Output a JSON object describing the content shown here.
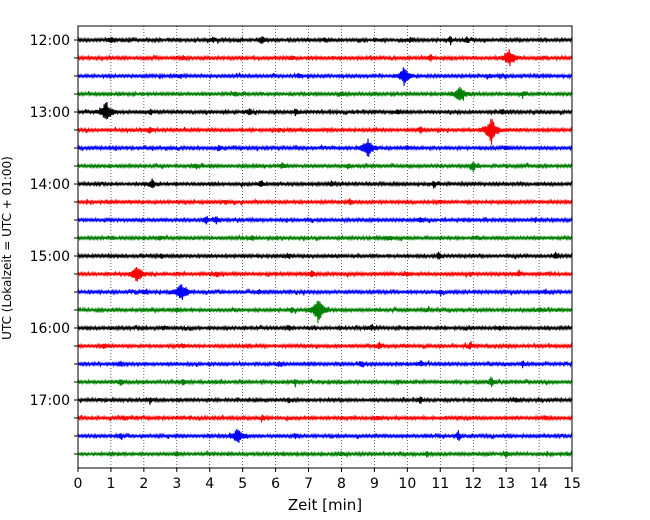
{
  "chart_data": {
    "type": "line",
    "title": "",
    "xlabel": "Zeit  [min]",
    "ylabel": "UTC (Lokalzeit = UTC + 01:00)",
    "xlim": [
      0,
      15
    ],
    "x_ticks": [
      0,
      1,
      2,
      3,
      4,
      5,
      6,
      7,
      8,
      9,
      10,
      11,
      12,
      13,
      14,
      15
    ],
    "x_grid": "dotted vertical lines at each minute",
    "y_tick_labels": [
      "12:00",
      "13:00",
      "14:00",
      "15:00",
      "16:00",
      "17:00"
    ],
    "trace_interval_minutes": 15,
    "trace_color_cycle": [
      "#000000",
      "#ff0000",
      "#0000ff",
      "#008000"
    ],
    "traces": [
      {
        "start": "12:00",
        "color": "#000000",
        "events": [
          [
            5.6,
            0.5
          ],
          [
            1.0,
            0.35
          ],
          [
            4.1,
            0.3
          ],
          [
            7.5,
            0.3
          ],
          [
            10.1,
            0.3
          ],
          [
            11.3,
            0.35
          ],
          [
            11.8,
            0.35
          ]
        ]
      },
      {
        "start": "12:15",
        "color": "#ff0000",
        "events": [
          [
            13.1,
            0.9
          ],
          [
            10.7,
            0.4
          ],
          [
            6.5,
            0.25
          ],
          [
            3.2,
            0.25
          ]
        ]
      },
      {
        "start": "12:30",
        "color": "#0000ff",
        "events": [
          [
            9.9,
            1.0
          ],
          [
            3.1,
            0.25
          ],
          [
            6.7,
            0.25
          ],
          [
            12.5,
            0.25
          ]
        ]
      },
      {
        "start": "12:45",
        "color": "#008000",
        "events": [
          [
            11.6,
            0.9
          ],
          [
            4.8,
            0.25
          ],
          [
            8.0,
            0.25
          ],
          [
            13.5,
            0.25
          ]
        ]
      },
      {
        "start": "13:00",
        "color": "#000000",
        "events": [
          [
            0.85,
            1.2
          ],
          [
            5.2,
            0.35
          ],
          [
            6.6,
            0.35
          ],
          [
            2.2,
            0.3
          ],
          [
            9.7,
            0.3
          ],
          [
            12.9,
            0.3
          ]
        ]
      },
      {
        "start": "13:15",
        "color": "#ff0000",
        "events": [
          [
            12.55,
            1.6
          ],
          [
            2.2,
            0.4
          ],
          [
            10.4,
            0.4
          ],
          [
            6.1,
            0.25
          ]
        ]
      },
      {
        "start": "13:30",
        "color": "#0000ff",
        "events": [
          [
            8.8,
            1.1
          ],
          [
            4.3,
            0.3
          ],
          [
            10.0,
            0.25
          ],
          [
            13.0,
            0.25
          ]
        ]
      },
      {
        "start": "13:45",
        "color": "#008000",
        "events": [
          [
            12.0,
            0.6
          ],
          [
            3.6,
            0.25
          ],
          [
            6.2,
            0.25
          ],
          [
            8.2,
            0.25
          ]
        ]
      },
      {
        "start": "14:00",
        "color": "#000000",
        "events": [
          [
            2.25,
            0.6
          ],
          [
            5.55,
            0.4
          ],
          [
            10.8,
            0.35
          ],
          [
            7.7,
            0.25
          ]
        ]
      },
      {
        "start": "14:15",
        "color": "#ff0000",
        "events": [
          [
            8.25,
            0.35
          ],
          [
            4.5,
            0.25
          ],
          [
            11.0,
            0.25
          ]
        ]
      },
      {
        "start": "14:30",
        "color": "#0000ff",
        "events": [
          [
            3.9,
            0.5
          ],
          [
            4.2,
            0.4
          ],
          [
            10.4,
            0.3
          ],
          [
            13.9,
            0.25
          ]
        ]
      },
      {
        "start": "14:45",
        "color": "#008000",
        "events": [
          [
            2.5,
            0.25
          ],
          [
            5.3,
            0.25
          ],
          [
            9.5,
            0.25
          ],
          [
            12.1,
            0.25
          ]
        ]
      },
      {
        "start": "15:00",
        "color": "#000000",
        "events": [
          [
            10.95,
            0.5
          ],
          [
            14.5,
            0.35
          ],
          [
            6.4,
            0.25
          ],
          [
            2.5,
            0.25
          ]
        ]
      },
      {
        "start": "15:15",
        "color": "#ff0000",
        "events": [
          [
            1.8,
            1.0
          ],
          [
            7.1,
            0.4
          ],
          [
            10.0,
            0.3
          ],
          [
            13.4,
            0.3
          ],
          [
            4.2,
            0.25
          ]
        ]
      },
      {
        "start": "15:30",
        "color": "#0000ff",
        "events": [
          [
            3.15,
            1.1
          ],
          [
            2.0,
            0.3
          ],
          [
            5.5,
            0.25
          ],
          [
            11.0,
            0.25
          ],
          [
            14.2,
            0.25
          ]
        ]
      },
      {
        "start": "15:45",
        "color": "#008000",
        "events": [
          [
            7.3,
            1.5
          ],
          [
            6.5,
            0.35
          ],
          [
            3.0,
            0.25
          ],
          [
            10.6,
            0.25
          ],
          [
            14.0,
            0.25
          ]
        ]
      },
      {
        "start": "16:00",
        "color": "#000000",
        "events": [
          [
            6.4,
            0.3
          ],
          [
            2.6,
            0.25
          ],
          [
            8.9,
            0.25
          ],
          [
            12.8,
            0.25
          ]
        ]
      },
      {
        "start": "16:15",
        "color": "#ff0000",
        "events": [
          [
            9.15,
            0.5
          ],
          [
            0.8,
            0.3
          ],
          [
            3.2,
            0.25
          ],
          [
            11.9,
            0.3
          ]
        ]
      },
      {
        "start": "16:30",
        "color": "#0000ff",
        "events": [
          [
            1.3,
            0.3
          ],
          [
            6.1,
            0.3
          ],
          [
            8.6,
            0.3
          ],
          [
            10.4,
            0.3
          ],
          [
            13.5,
            0.3
          ]
        ]
      },
      {
        "start": "16:45",
        "color": "#008000",
        "events": [
          [
            12.55,
            0.6
          ],
          [
            1.3,
            0.4
          ],
          [
            3.2,
            0.4
          ],
          [
            6.6,
            0.3
          ],
          [
            9.7,
            0.25
          ]
        ]
      },
      {
        "start": "17:00",
        "color": "#000000",
        "events": [
          [
            10.4,
            0.35
          ],
          [
            6.4,
            0.3
          ],
          [
            2.2,
            0.25
          ],
          [
            13.3,
            0.25
          ]
        ]
      },
      {
        "start": "17:15",
        "color": "#ff0000",
        "events": [
          [
            1.4,
            0.25
          ],
          [
            5.6,
            0.25
          ],
          [
            9.1,
            0.25
          ],
          [
            14.2,
            0.25
          ]
        ]
      },
      {
        "start": "17:30",
        "color": "#0000ff",
        "events": [
          [
            4.85,
            0.9
          ],
          [
            11.55,
            0.55
          ],
          [
            6.6,
            0.3
          ],
          [
            1.3,
            0.25
          ]
        ]
      },
      {
        "start": "17:45",
        "color": "#008000",
        "events": [
          [
            13.0,
            0.4
          ],
          [
            3.0,
            0.25
          ],
          [
            8.0,
            0.25
          ],
          [
            10.6,
            0.25
          ]
        ]
      }
    ]
  }
}
